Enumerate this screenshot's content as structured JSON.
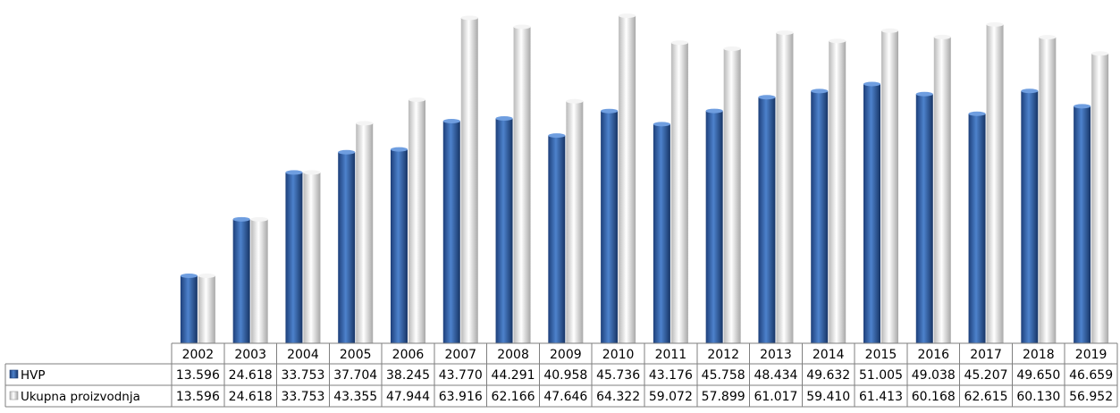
{
  "chart_data": {
    "type": "bar",
    "title": "",
    "xlabel": "",
    "ylabel": "",
    "ylim": [
      0,
      70
    ],
    "grid": false,
    "legend": "data-table-rows",
    "categories": [
      "2002",
      "2003",
      "2004",
      "2005",
      "2006",
      "2007",
      "2008",
      "2009",
      "2010",
      "2011",
      "2012",
      "2013",
      "2014",
      "2015",
      "2016",
      "2017",
      "2018",
      "2019"
    ],
    "series": [
      {
        "name": "HVP",
        "color": "#2b5aa6",
        "values": [
          13.596,
          24.618,
          33.753,
          37.704,
          38.245,
          43.77,
          44.291,
          40.958,
          45.736,
          43.176,
          45.758,
          48.434,
          49.632,
          51.005,
          49.038,
          45.207,
          49.65,
          46.659
        ],
        "labels": [
          "13.596",
          "24.618",
          "33.753",
          "37.704",
          "38.245",
          "43.770",
          "44.291",
          "40.958",
          "45.736",
          "43.176",
          "45.758",
          "48.434",
          "49.632",
          "51.005",
          "49.038",
          "45.207",
          "49.650",
          "46.659"
        ]
      },
      {
        "name": "Ukupna proizvodnja",
        "color": "#d9d9d9",
        "values": [
          13.596,
          24.618,
          33.753,
          43.355,
          47.944,
          63.916,
          62.166,
          47.646,
          64.322,
          59.072,
          57.899,
          61.017,
          59.41,
          61.413,
          60.168,
          62.615,
          60.13,
          56.952
        ],
        "labels": [
          "13.596",
          "24.618",
          "33.753",
          "43.355",
          "47.944",
          "63.916",
          "62.166",
          "47.646",
          "64.322",
          "59.072",
          "57.899",
          "61.017",
          "59.410",
          "61.413",
          "60.168",
          "62.615",
          "60.130",
          "56.952"
        ]
      }
    ]
  }
}
